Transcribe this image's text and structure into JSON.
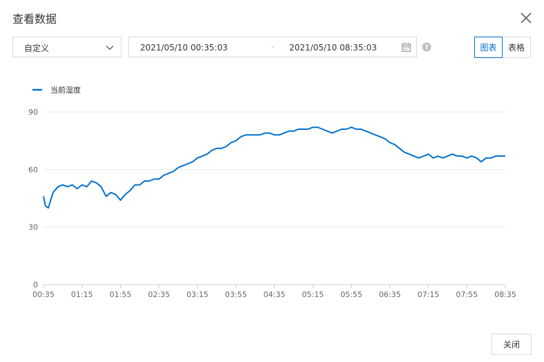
{
  "dialog": {
    "title": "查看数据",
    "close_icon": "close-icon"
  },
  "controls": {
    "range_type": "自定义",
    "start_time": "2021/05/10 00:35:03",
    "separator": "-",
    "end_time": "2021/05/10 08:35:03",
    "calendar_icon": "calendar-icon",
    "help_icon": "help-icon",
    "view_toggle": [
      {
        "label": "图表",
        "active": true
      },
      {
        "label": "表格",
        "active": false
      }
    ]
  },
  "footer": {
    "close_label": "关闭"
  },
  "colors": {
    "accent": "#0070cc",
    "series": "#0070cc",
    "grid": "#e8e8e8",
    "axis_text": "#666666"
  },
  "chart_data": {
    "type": "line",
    "title": "",
    "xlabel": "",
    "ylabel": "",
    "legend": "top-left",
    "grid": true,
    "ylim": [
      0,
      90
    ],
    "yticks": [
      0,
      30,
      60,
      90
    ],
    "xticks": [
      "00:35",
      "01:15",
      "01:55",
      "02:35",
      "03:15",
      "03:55",
      "04:35",
      "05:15",
      "05:55",
      "06:35",
      "07:15",
      "07:55",
      "08:35"
    ],
    "series": [
      {
        "name": "当前湿度",
        "x": [
          "00:35",
          "00:37",
          "00:40",
          "00:45",
          "00:50",
          "00:55",
          "01:00",
          "01:05",
          "01:10",
          "01:15",
          "01:20",
          "01:25",
          "01:30",
          "01:35",
          "01:40",
          "01:45",
          "01:50",
          "01:55",
          "02:00",
          "02:05",
          "02:10",
          "02:15",
          "02:20",
          "02:25",
          "02:30",
          "02:35",
          "02:40",
          "02:45",
          "02:50",
          "02:55",
          "03:00",
          "03:05",
          "03:10",
          "03:15",
          "03:20",
          "03:25",
          "03:30",
          "03:35",
          "03:40",
          "03:45",
          "03:50",
          "03:55",
          "04:00",
          "04:05",
          "04:10",
          "04:15",
          "04:20",
          "04:25",
          "04:30",
          "04:35",
          "04:40",
          "04:45",
          "04:50",
          "04:55",
          "05:00",
          "05:05",
          "05:10",
          "05:15",
          "05:20",
          "05:25",
          "05:30",
          "05:35",
          "05:40",
          "05:45",
          "05:50",
          "05:55",
          "06:00",
          "06:05",
          "06:10",
          "06:15",
          "06:20",
          "06:25",
          "06:30",
          "06:35",
          "06:40",
          "06:45",
          "06:50",
          "06:55",
          "07:00",
          "07:05",
          "07:10",
          "07:15",
          "07:20",
          "07:25",
          "07:30",
          "07:35",
          "07:40",
          "07:45",
          "07:50",
          "07:55",
          "08:00",
          "08:05",
          "08:10",
          "08:15",
          "08:20",
          "08:25",
          "08:30",
          "08:35"
        ],
        "values": [
          46,
          41,
          40,
          48,
          51,
          52,
          51,
          52,
          50,
          52,
          51,
          54,
          53,
          51,
          46,
          48,
          47,
          44,
          47,
          49,
          52,
          52,
          54,
          54,
          55,
          55,
          57,
          58,
          59,
          61,
          62,
          63,
          64,
          66,
          67,
          68,
          70,
          71,
          71,
          72,
          74,
          75,
          77,
          78,
          78,
          78,
          78,
          79,
          79,
          78,
          78,
          79,
          80,
          80,
          81,
          81,
          81,
          82,
          82,
          81,
          80,
          79,
          80,
          81,
          81,
          82,
          81,
          81,
          80,
          79,
          78,
          77,
          76,
          74,
          73,
          71,
          69,
          68,
          67,
          66,
          67,
          68,
          66,
          67,
          66,
          67,
          68,
          67,
          67,
          66,
          67,
          66,
          64,
          66,
          66,
          67,
          67,
          67
        ]
      }
    ]
  }
}
